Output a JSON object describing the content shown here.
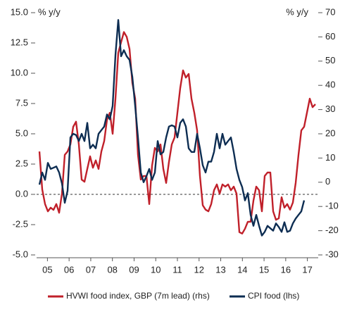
{
  "chart_data": {
    "type": "line",
    "ylabel": "% y/y",
    "y2label": "% y/y",
    "xlim": [
      2004.5,
      2017.5
    ],
    "xticks": [
      {
        "value": 2005,
        "label": "05"
      },
      {
        "value": 2006,
        "label": "06"
      },
      {
        "value": 2007,
        "label": "07"
      },
      {
        "value": 2008,
        "label": "08"
      },
      {
        "value": 2009,
        "label": "09"
      },
      {
        "value": 2010,
        "label": "10"
      },
      {
        "value": 2011,
        "label": "11"
      },
      {
        "value": 2012,
        "label": "12"
      },
      {
        "value": 2013,
        "label": "13"
      },
      {
        "value": 2014,
        "label": "14"
      },
      {
        "value": 2015,
        "label": "15"
      },
      {
        "value": 2016,
        "label": "16"
      },
      {
        "value": 2017,
        "label": "17"
      }
    ],
    "ylim": [
      -5,
      15
    ],
    "yticks": [
      {
        "value": 15,
        "label": "15.0"
      },
      12.5,
      {
        "value": 10,
        "label": "10.0"
      },
      7.5,
      {
        "value": 5,
        "label": "5.0"
      },
      2.5,
      {
        "value": 0,
        "label": "0.0"
      },
      -2.5,
      {
        "value": -5,
        "label": "-5.0"
      }
    ],
    "y2lim": [
      -30,
      70
    ],
    "y2ticks": [
      70,
      60,
      50,
      40,
      30,
      20,
      10,
      0,
      -10,
      -20,
      -30
    ],
    "zero_line": true,
    "x": [
      2004.63,
      2004.76,
      2004.89,
      2005.02,
      2005.15,
      2005.28,
      2005.41,
      2005.54,
      2005.67,
      2005.8,
      2005.93,
      2006.06,
      2006.19,
      2006.32,
      2006.45,
      2006.58,
      2006.71,
      2006.84,
      2006.97,
      2007.1,
      2007.23,
      2007.36,
      2007.49,
      2007.62,
      2007.75,
      2007.88,
      2008.01,
      2008.14,
      2008.27,
      2008.4,
      2008.53,
      2008.66,
      2008.79,
      2008.92,
      2009.05,
      2009.18,
      2009.31,
      2009.44,
      2009.57,
      2009.7,
      2009.83,
      2009.96,
      2010.09,
      2010.22,
      2010.35,
      2010.48,
      2010.61,
      2010.74,
      2010.87,
      2011.0,
      2011.13,
      2011.26,
      2011.39,
      2011.52,
      2011.65,
      2011.78,
      2011.91,
      2012.04,
      2012.17,
      2012.3,
      2012.43,
      2012.56,
      2012.69,
      2012.82,
      2012.95,
      2013.08,
      2013.21,
      2013.34,
      2013.47,
      2013.6,
      2013.73,
      2013.86,
      2013.99,
      2014.12,
      2014.25,
      2014.38,
      2014.51,
      2014.64,
      2014.77,
      2014.9,
      2015.03,
      2015.16,
      2015.29,
      2015.42,
      2015.55,
      2015.68,
      2015.81,
      2015.94,
      2016.07,
      2016.2,
      2016.33,
      2016.46,
      2016.59,
      2016.72,
      2016.85,
      2016.98,
      2017.11,
      2017.24,
      2017.37
    ],
    "series": [
      {
        "name": "HVWI food index, GBP (7m lead) (rhs)",
        "color": "#c0202a",
        "axis": "y2",
        "values": [
          12.7,
          -3,
          -9,
          -12,
          -10.5,
          -11.4,
          -9,
          -12.6,
          -4.7,
          11.3,
          12.7,
          15.6,
          22.9,
          25,
          15.6,
          1.1,
          0.2,
          5.5,
          10.7,
          6,
          9,
          5.5,
          12.7,
          17,
          25.8,
          28.7,
          20,
          34.5,
          53.4,
          57.8,
          62,
          60,
          55,
          41,
          34.5,
          11.3,
          1.1,
          2.6,
          2.6,
          -9,
          6.9,
          14.2,
          12.7,
          15.6,
          5.5,
          -0.3,
          8.4,
          15.6,
          18.5,
          28.7,
          38.9,
          46.2,
          43.2,
          44.7,
          34.5,
          28.7,
          21.4,
          2.6,
          -9.5,
          -11.3,
          -12,
          -9,
          -3.3,
          -0.9,
          -4.7,
          -0.9,
          -1.8,
          -0.9,
          -3.3,
          -1.8,
          -4.7,
          -20.6,
          -21.2,
          -19.2,
          -16.3,
          -16.3,
          -7.6,
          -1.8,
          -3.3,
          -12,
          2.6,
          4,
          4,
          -12,
          -15.5,
          -14.9,
          -6.2,
          -10.5,
          -9,
          -11.3,
          -8.4,
          -0.3,
          11.3,
          21.4,
          22.9,
          28.7,
          34.5,
          31,
          32.2
        ]
      },
      {
        "name": "CPI food (lhs)",
        "color": "#0d2d52",
        "values": [
          0.8,
          1.8,
          1.2,
          2.6,
          2.1,
          2.2,
          2.3,
          1.8,
          0.9,
          -0.7,
          0.3,
          4.7,
          5.0,
          4.9,
          4.4,
          5.0,
          4.4,
          5.9,
          3.8,
          4.1,
          3.8,
          5.0,
          5.3,
          5.6,
          6.6,
          6.2,
          7.3,
          11.5,
          14.4,
          11.4,
          11.9,
          11.4,
          11.1,
          9.7,
          7.3,
          4.7,
          1.8,
          1.0,
          1.5,
          2.1,
          1.2,
          1.8,
          4.4,
          3.3,
          3.5,
          4.7,
          5.6,
          5.7,
          5.6,
          4.7,
          5.9,
          6.2,
          5.6,
          3.8,
          3.5,
          3.5,
          5.0,
          3.8,
          2.4,
          1.8,
          2.7,
          2.7,
          3.5,
          5.0,
          3.8,
          5.0,
          4.1,
          4.4,
          4.7,
          3.5,
          2.1,
          1.2,
          0.6,
          -0.5,
          0.1,
          -1.7,
          -2.6,
          -1.7,
          -2.6,
          -3.4,
          -3.1,
          -2.6,
          -2.8,
          -3.0,
          -2.4,
          -2.7,
          -3.1,
          -2.3,
          -3.1,
          -3.0,
          -2.4,
          -2.0,
          -1.7,
          -1.4,
          -0.5,
          null,
          null,
          null,
          null
        ]
      }
    ]
  }
}
